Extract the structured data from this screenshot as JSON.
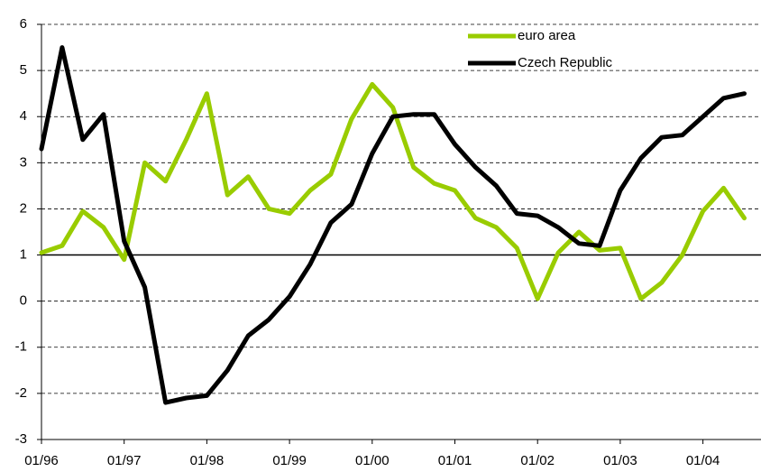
{
  "chart_data": {
    "type": "line",
    "categories": [
      "01/96",
      null,
      null,
      null,
      "01/97",
      null,
      null,
      null,
      "01/98",
      null,
      null,
      null,
      "01/99",
      null,
      null,
      null,
      "01/00",
      null,
      null,
      null,
      "01/01",
      null,
      null,
      null,
      "01/02",
      null,
      null,
      null,
      "01/03",
      null,
      null,
      null,
      "01/04",
      null,
      null
    ],
    "series": [
      {
        "name": "euro area",
        "color": "#99cc00",
        "values": [
          1.05,
          1.2,
          1.95,
          1.6,
          0.9,
          3.0,
          2.6,
          3.5,
          4.5,
          2.3,
          2.7,
          2.0,
          1.9,
          2.4,
          2.75,
          3.95,
          4.7,
          4.2,
          2.9,
          2.55,
          2.4,
          1.8,
          1.6,
          1.15,
          0.05,
          1.05,
          1.5,
          1.1,
          1.15,
          0.05,
          0.4,
          1.0,
          1.95,
          2.45,
          1.8
        ]
      },
      {
        "name": "Czech Republic",
        "color": "#000000",
        "values": [
          3.3,
          5.5,
          3.5,
          4.05,
          1.3,
          0.3,
          -2.2,
          -2.1,
          -2.05,
          -1.5,
          -0.75,
          -0.4,
          0.1,
          0.8,
          1.7,
          2.1,
          3.2,
          4.0,
          4.05,
          4.05,
          3.4,
          2.9,
          2.5,
          1.9,
          1.85,
          1.6,
          1.25,
          1.2,
          2.4,
          3.1,
          3.55,
          3.6,
          4.0,
          4.4,
          4.5
        ]
      }
    ],
    "ylim": [
      -3,
      6
    ],
    "yticks": [
      -3,
      -2,
      -1,
      0,
      1,
      2,
      3,
      4,
      5,
      6
    ],
    "reference_line": 1,
    "grid": true,
    "legend": "top-right"
  }
}
